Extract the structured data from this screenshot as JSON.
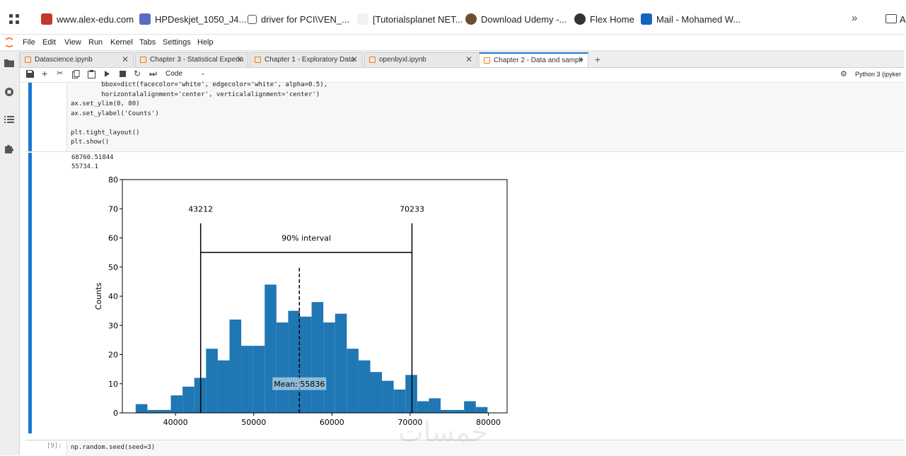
{
  "bookmarks": [
    {
      "label": "www.alex-edu.com",
      "color": "#c0392b"
    },
    {
      "label": "HPDeskjet_1050_J4...",
      "color": "#5b6bc0"
    },
    {
      "label": "driver for PCI\\VEN_...",
      "color": "#ffffff"
    },
    {
      "label": "[Tutorialsplanet NET...",
      "color": "#f2f2f2"
    },
    {
      "label": "Download Udemy -...",
      "color": "#6d4c2f"
    },
    {
      "label": "Flex Home",
      "color": "#333333"
    },
    {
      "label": "Mail - Mohamed W...",
      "color": "#1565c0"
    }
  ],
  "bookmarks_overflow_label": "A",
  "menu": [
    "File",
    "Edit",
    "View",
    "Run",
    "Kernel",
    "Tabs",
    "Settings",
    "Help"
  ],
  "tabs": [
    {
      "label": "Datascience.ipynb",
      "active": false,
      "close": "✕"
    },
    {
      "label": "Chapter 3 - Statistical Experin",
      "active": false,
      "close": "✕"
    },
    {
      "label": "Chapter 1 - Exploratory Data",
      "active": false,
      "close": "✕"
    },
    {
      "label": "openbyxl.ipynb",
      "active": false,
      "close": "✕"
    },
    {
      "label": "Chapter 2 - Data and sampli",
      "active": true,
      "close": "●"
    }
  ],
  "new_tab_label": "+",
  "toolbar": {
    "cell_type": "Code",
    "kernel": "Python 3 (ipyker"
  },
  "code_lines": [
    "        bbox=dict(facecolor='white', edgecolor='white', alpha=0.5),",
    "        horizontalalignment='center', verticalalignment='center')",
    "ax.set_ylim(0, 80)",
    "ax.set_ylabel('Counts')",
    "",
    "plt.tight_layout()",
    "plt.show()"
  ],
  "outputs": [
    "68760.51844",
    "55734.1"
  ],
  "next_cell": {
    "prompt": "[9]:",
    "code": "np.random.seed(seed=3)"
  },
  "watermark": "خمسات",
  "chart_data": {
    "type": "bar",
    "xlabel": "",
    "ylabel": "Counts",
    "ylim": [
      0,
      80
    ],
    "xlim": [
      33200,
      82400
    ],
    "x_ticks": [
      40000,
      50000,
      60000,
      70000,
      80000
    ],
    "y_ticks": [
      0,
      10,
      20,
      30,
      40,
      50,
      60,
      70,
      80
    ],
    "bar_color": "#1f77b4",
    "bin_width": 1500,
    "bin_start": 34900,
    "values": [
      3,
      1,
      1,
      6,
      9,
      12,
      22,
      18,
      32,
      23,
      23,
      44,
      31,
      35,
      33,
      38,
      31,
      34,
      22,
      18,
      14,
      11,
      8,
      13,
      4,
      5,
      1,
      1,
      4,
      2
    ],
    "ci_lower": 43212,
    "ci_upper": 70233,
    "ci_label": "90% interval",
    "ci_lower_label": "43212",
    "ci_upper_label": "70233",
    "mean": 55836,
    "mean_label": "Mean: 55836",
    "grid": false
  }
}
